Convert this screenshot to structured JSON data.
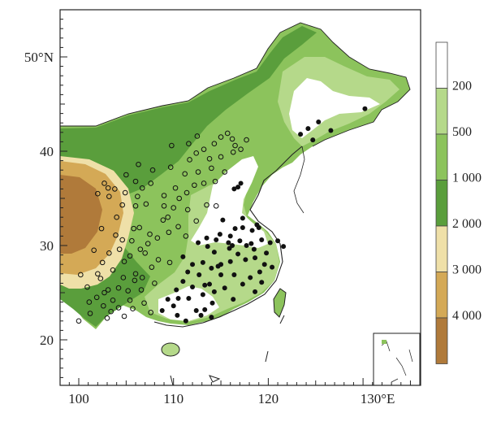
{
  "axes": {
    "y_ticks": [
      {
        "lat": 50,
        "label": "50°N"
      },
      {
        "lat": 40,
        "label": "40"
      },
      {
        "lat": 30,
        "label": "30"
      },
      {
        "lat": 20,
        "label": "20"
      }
    ],
    "x_ticks": [
      {
        "lon": 100,
        "label": "100"
      },
      {
        "lon": 110,
        "label": "110"
      },
      {
        "lon": 120,
        "label": "120"
      },
      {
        "lon": 130,
        "label": "130°E"
      }
    ],
    "lon_range": [
      98,
      136
    ],
    "lat_range": [
      15,
      56
    ]
  },
  "legend": {
    "unit_note": "",
    "bins": [
      {
        "label": "200",
        "color": "#ffffff"
      },
      {
        "label": "500",
        "color": "#b5d98a"
      },
      {
        "label": "1 000",
        "color": "#8cc35c"
      },
      {
        "label": "2 000",
        "color": "#5a9e3c"
      },
      {
        "label": "3 000",
        "color": "#efe0a8"
      },
      {
        "label": "4 000",
        "color": "#d4a956"
      },
      {
        "label": "",
        "color": "#b07a3a"
      }
    ]
  },
  "colors": {
    "land_low": "#ffffff",
    "green_light": "#b5d98a",
    "green_mid": "#8cc35c",
    "green_dark": "#5a9e3c",
    "tan_light": "#efe0a8",
    "tan_mid": "#d4a956",
    "brown": "#b07a3a",
    "coast": "#222222"
  },
  "stations": {
    "open": [
      [
        102.7,
        36.6
      ],
      [
        103.8,
        36.0
      ],
      [
        104.9,
        35.6
      ],
      [
        103.2,
        35.2
      ],
      [
        106.2,
        35.2
      ],
      [
        104.6,
        34.3
      ],
      [
        106.0,
        34.2
      ],
      [
        107.1,
        34.4
      ],
      [
        109.0,
        34.2
      ],
      [
        110.0,
        34.0
      ],
      [
        111.5,
        33.8
      ],
      [
        109.0,
        35.3
      ],
      [
        110.2,
        36.1
      ],
      [
        111.4,
        35.6
      ],
      [
        112.2,
        36.4
      ],
      [
        112.6,
        37.8
      ],
      [
        113.2,
        36.6
      ],
      [
        114.4,
        36.8
      ],
      [
        115.4,
        37.8
      ],
      [
        114.0,
        38.2
      ],
      [
        111.2,
        37.6
      ],
      [
        109.7,
        38.3
      ],
      [
        111.7,
        39.1
      ],
      [
        112.4,
        39.8
      ],
      [
        113.2,
        40.2
      ],
      [
        114.3,
        40.8
      ],
      [
        115.0,
        39.4
      ],
      [
        116.3,
        39.9
      ],
      [
        117.1,
        40.2
      ],
      [
        116.5,
        40.6
      ],
      [
        117.7,
        41.2
      ],
      [
        115.0,
        41.5
      ],
      [
        116.2,
        41.3
      ],
      [
        111.6,
        40.8
      ],
      [
        109.8,
        40.6
      ],
      [
        106.3,
        38.6
      ],
      [
        106.7,
        36.1
      ],
      [
        107.6,
        36.6
      ],
      [
        105.0,
        37.5
      ],
      [
        103.1,
        36.1
      ],
      [
        102.0,
        35.5
      ],
      [
        104.0,
        33.0
      ],
      [
        102.4,
        31.8
      ],
      [
        103.9,
        31.1
      ],
      [
        104.6,
        30.6
      ],
      [
        105.6,
        30.5
      ],
      [
        106.4,
        31.9
      ],
      [
        107.5,
        31.2
      ],
      [
        108.3,
        30.8
      ],
      [
        109.5,
        31.4
      ],
      [
        110.5,
        32.0
      ],
      [
        111.3,
        31.0
      ],
      [
        112.4,
        32.6
      ],
      [
        113.5,
        34.3
      ],
      [
        114.5,
        34.2
      ],
      [
        108.9,
        32.7
      ],
      [
        106.5,
        29.6
      ],
      [
        105.4,
        28.9
      ],
      [
        104.3,
        29.6
      ],
      [
        103.2,
        29.2
      ],
      [
        102.5,
        28.2
      ],
      [
        102.0,
        27.0
      ],
      [
        103.6,
        27.4
      ],
      [
        104.7,
        26.6
      ],
      [
        105.9,
        26.3
      ],
      [
        106.7,
        26.6
      ],
      [
        107.7,
        27.7
      ],
      [
        108.4,
        28.5
      ],
      [
        109.6,
        28.2
      ],
      [
        108.0,
        26.0
      ],
      [
        106.6,
        25.3
      ],
      [
        105.2,
        25.2
      ],
      [
        104.2,
        25.5
      ],
      [
        103.1,
        25.3
      ],
      [
        102.7,
        25.0
      ],
      [
        101.9,
        24.5
      ],
      [
        100.9,
        25.6
      ],
      [
        100.2,
        26.9
      ],
      [
        102.6,
        23.6
      ],
      [
        103.4,
        23.0
      ],
      [
        101.2,
        22.8
      ],
      [
        100.0,
        22.0
      ],
      [
        104.2,
        23.4
      ],
      [
        105.4,
        24.2
      ],
      [
        106.9,
        23.9
      ],
      [
        107.6,
        22.9
      ],
      [
        104.8,
        22.5
      ],
      [
        103.0,
        22.3
      ],
      [
        101.1,
        24.0
      ],
      [
        102.3,
        26.5
      ],
      [
        106.0,
        27.0
      ],
      [
        107.0,
        29.2
      ],
      [
        107.3,
        30.2
      ],
      [
        105.8,
        31.8
      ],
      [
        101.6,
        29.5
      ],
      [
        104.8,
        28.3
      ],
      [
        103.6,
        24.2
      ],
      [
        105.7,
        23.3
      ],
      [
        109.4,
        33.0
      ],
      [
        110.6,
        35.0
      ],
      [
        106.0,
        36.8
      ],
      [
        107.8,
        38.0
      ],
      [
        113.8,
        39.2
      ],
      [
        112.5,
        41.6
      ],
      [
        115.7,
        41.9
      ]
    ],
    "filled": [
      [
        116.5,
        31.8
      ],
      [
        117.3,
        31.9
      ],
      [
        118.3,
        31.6
      ],
      [
        119.0,
        31.9
      ],
      [
        117.0,
        30.5
      ],
      [
        118.2,
        30.2
      ],
      [
        119.3,
        30.6
      ],
      [
        120.2,
        30.3
      ],
      [
        121.0,
        30.5
      ],
      [
        115.8,
        30.3
      ],
      [
        114.5,
        30.6
      ],
      [
        113.6,
        29.9
      ],
      [
        114.3,
        29.3
      ],
      [
        115.9,
        29.7
      ],
      [
        116.8,
        29.1
      ],
      [
        117.6,
        28.5
      ],
      [
        118.6,
        28.7
      ],
      [
        119.6,
        28.0
      ],
      [
        120.4,
        27.7
      ],
      [
        119.1,
        27.2
      ],
      [
        118.1,
        26.6
      ],
      [
        117.3,
        25.9
      ],
      [
        118.6,
        25.1
      ],
      [
        119.3,
        26.1
      ],
      [
        116.4,
        26.9
      ],
      [
        115.0,
        26.9
      ],
      [
        114.0,
        27.6
      ],
      [
        113.1,
        28.2
      ],
      [
        112.0,
        28.0
      ],
      [
        111.5,
        27.2
      ],
      [
        112.7,
        26.9
      ],
      [
        113.3,
        25.8
      ],
      [
        112.0,
        25.6
      ],
      [
        111.0,
        26.2
      ],
      [
        110.3,
        25.3
      ],
      [
        109.4,
        24.3
      ],
      [
        110.5,
        24.4
      ],
      [
        111.6,
        24.4
      ],
      [
        113.1,
        24.8
      ],
      [
        114.3,
        25.1
      ],
      [
        115.4,
        25.5
      ],
      [
        116.3,
        24.3
      ],
      [
        114.1,
        23.9
      ],
      [
        113.3,
        23.2
      ],
      [
        112.4,
        23.1
      ],
      [
        110.4,
        22.6
      ],
      [
        111.3,
        22.0
      ],
      [
        112.9,
        22.6
      ],
      [
        114.0,
        22.4
      ],
      [
        110.0,
        23.6
      ],
      [
        108.8,
        23.1
      ],
      [
        115.0,
        28.0
      ],
      [
        116.0,
        28.3
      ],
      [
        114.9,
        31.2
      ],
      [
        113.5,
        30.8
      ],
      [
        116.2,
        30.0
      ],
      [
        117.7,
        30.0
      ],
      [
        118.5,
        29.6
      ],
      [
        119.8,
        29.2
      ],
      [
        121.6,
        29.9
      ],
      [
        118.8,
        32.2
      ],
      [
        115.2,
        32.7
      ],
      [
        117.3,
        32.9
      ],
      [
        117.1,
        36.6
      ],
      [
        116.4,
        36.0
      ],
      [
        116.8,
        36.2
      ],
      [
        123.4,
        41.8
      ],
      [
        124.2,
        42.4
      ],
      [
        125.3,
        43.1
      ],
      [
        126.6,
        42.2
      ],
      [
        130.2,
        44.5
      ],
      [
        124.7,
        41.2
      ],
      [
        113.8,
        25.9
      ],
      [
        111.0,
        28.8
      ],
      [
        112.6,
        30.3
      ],
      [
        114.7,
        27.8
      ],
      [
        116.0,
        31.0
      ]
    ]
  }
}
